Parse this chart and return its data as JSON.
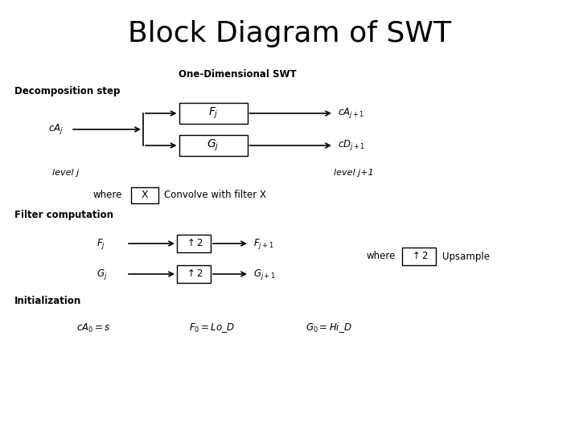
{
  "title": "Block Diagram of SWT",
  "title_fontsize": 26,
  "bg_color": "#ffffff",
  "sections": {
    "one_dim_label": "One-Dimensional SWT",
    "decomp_label": "Decomposition step",
    "filter_label": "Filter computation",
    "init_label": "Initialization"
  },
  "decomp": {
    "input_label": "$cA_j$",
    "fj_label": "$F_j$",
    "gj_label": "$G_j$",
    "out_top": "$cA_{j+1}$",
    "out_bot": "$cD_{j+1}$",
    "level_j": "level j",
    "level_jp1": "level j+1",
    "where_text": "where",
    "box_x_label": "X",
    "convolve_text": "Convolve with filter X"
  },
  "filter": {
    "fj_label": "$F_j$",
    "gj_label": "$G_j$",
    "up2_label": "$\\uparrow$2",
    "fjp1_label": "$F_{j+1}$",
    "gjp1_label": "$G_{j+1}$",
    "where_text": "where",
    "up2_legend_label": "$\\uparrow$2",
    "upsample_text": "Upsample"
  },
  "init": {
    "eq1": "$cA_0 = s$",
    "eq2": "$F_0 = Lo\\_D$",
    "eq3": "$G_0 = Hi\\_D$"
  }
}
